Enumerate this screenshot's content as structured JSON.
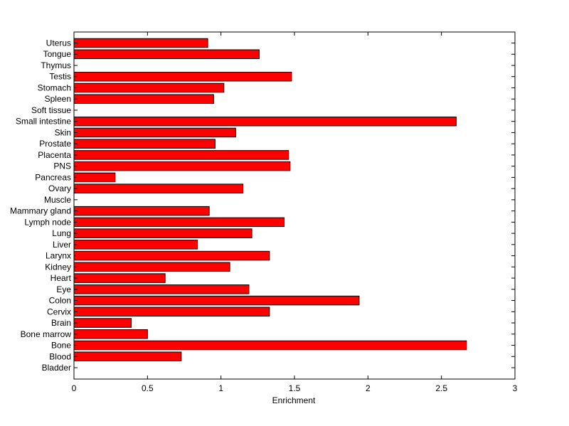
{
  "chart_data": {
    "type": "bar",
    "orientation": "horizontal",
    "title": "",
    "xlabel": "Enrichment",
    "ylabel": "",
    "xlim": [
      0,
      3
    ],
    "xticks": [
      0,
      0.5,
      1,
      1.5,
      2,
      2.5,
      3
    ],
    "xtick_labels": [
      "0",
      "0.5",
      "1",
      "1.5",
      "2",
      "2.5",
      "3"
    ],
    "grid": false,
    "legend": "none",
    "bar_color": "#ff0000",
    "bar_edge_color": "#000000",
    "categories": [
      "Bladder",
      "Blood",
      "Bone",
      "Bone marrow",
      "Brain",
      "Cervix",
      "Colon",
      "Eye",
      "Heart",
      "Kidney",
      "Larynx",
      "Liver",
      "Lung",
      "Lymph node",
      "Mammary gland",
      "Muscle",
      "Ovary",
      "Pancreas",
      "PNS",
      "Placenta",
      "Prostate",
      "Skin",
      "Small intestine",
      "Soft tissue",
      "Spleen",
      "Stomach",
      "Testis",
      "Thymus",
      "Tongue",
      "Uterus"
    ],
    "values": [
      0,
      0.73,
      2.67,
      0.5,
      0.39,
      1.33,
      1.94,
      1.19,
      0.62,
      1.06,
      1.33,
      0.84,
      1.21,
      1.43,
      0.92,
      0,
      1.15,
      0.28,
      1.47,
      1.46,
      0.96,
      1.1,
      2.6,
      0,
      0.95,
      1.02,
      1.48,
      0,
      1.26,
      0.91
    ]
  }
}
